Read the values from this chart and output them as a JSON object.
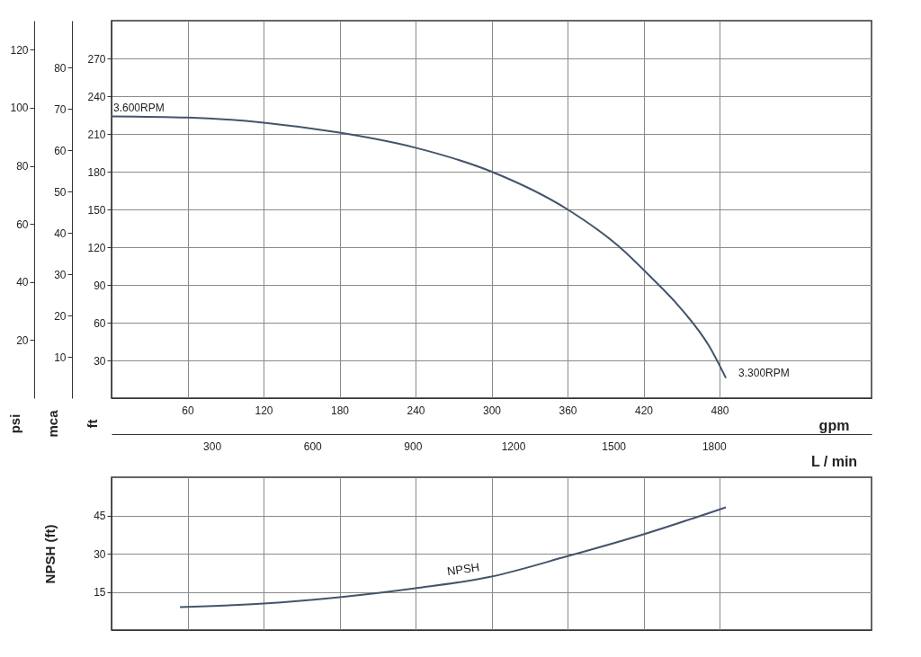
{
  "chart_data": [
    {
      "type": "line",
      "x": [
        0,
        60,
        120,
        180,
        240,
        300,
        360,
        400,
        424,
        448,
        472,
        485
      ],
      "series": [
        {
          "color": "#44556a",
          "values": [
            224,
            223,
            219,
            211,
            199,
            180,
            150,
            121,
            98,
            73,
            41,
            16
          ]
        }
      ],
      "xlabel": "gpm",
      "xlim": [
        0,
        600
      ],
      "xticks": [
        60,
        120,
        180,
        240,
        300,
        360,
        420,
        480
      ],
      "x2label": "L / min",
      "x2lim": [
        0,
        2271
      ],
      "x2ticks": [
        300,
        600,
        900,
        1200,
        1500,
        1800
      ],
      "ylabel": "ft",
      "ylim": [
        0,
        300
      ],
      "yticks": [
        30,
        60,
        90,
        120,
        150,
        180,
        210,
        240,
        270
      ],
      "y2label": "mca",
      "y2lim": [
        0,
        91.4
      ],
      "y2ticks": [
        10,
        20,
        30,
        40,
        50,
        60,
        70,
        80
      ],
      "y3label": "psi",
      "y3lim": [
        0,
        130
      ],
      "y3ticks": [
        20,
        40,
        60,
        80,
        100,
        120
      ],
      "annotations": [
        {
          "text": "3.600RPM",
          "x": 0,
          "y": 224
        },
        {
          "text": "3.300RPM",
          "x": 485,
          "y": 16
        }
      ],
      "grid": true
    },
    {
      "type": "line",
      "x": [
        54,
        120,
        180,
        240,
        300,
        360,
        420,
        485
      ],
      "series": [
        {
          "name": "NPSH",
          "color": "#44556a",
          "values": [
            9,
            10.4,
            12.9,
            16.4,
            21,
            29,
            37.6,
            48.2
          ]
        }
      ],
      "xlim": [
        0,
        600
      ],
      "xticks": [
        60,
        120,
        180,
        240,
        300,
        360,
        420,
        480
      ],
      "ylabel": "NPSH (ft)",
      "ylim": [
        0,
        60
      ],
      "yticks": [
        15,
        30,
        45
      ],
      "tick_labels": "y",
      "grid": true
    }
  ]
}
